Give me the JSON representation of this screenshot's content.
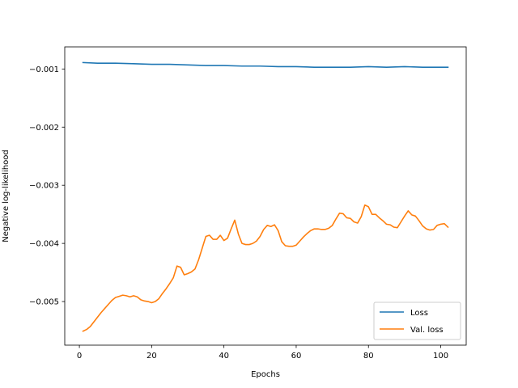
{
  "chart_data": {
    "type": "line",
    "xlabel": "Epochs",
    "ylabel": "Negative log-likelihood",
    "xlim": [
      -4.05,
      107.05
    ],
    "ylim": [
      -0.00575,
      -0.00062
    ],
    "xticks": [
      0,
      20,
      40,
      60,
      80,
      100
    ],
    "xtick_labels": [
      "0",
      "20",
      "40",
      "60",
      "80",
      "100"
    ],
    "yticks": [
      -0.005,
      -0.004,
      -0.003,
      -0.002,
      -0.001
    ],
    "ytick_labels": [
      "−0.005",
      "−0.004",
      "−0.003",
      "−0.002",
      "−0.001"
    ],
    "grid": false,
    "legend_position": "lower right",
    "series": [
      {
        "name": "Loss",
        "color": "#1f77b4",
        "x": [
          1,
          5,
          10,
          15,
          20,
          25,
          30,
          35,
          40,
          45,
          50,
          55,
          60,
          65,
          70,
          75,
          80,
          85,
          90,
          95,
          102
        ],
        "y": [
          -0.00089,
          -0.0009,
          -0.0009,
          -0.00091,
          -0.00092,
          -0.00092,
          -0.00093,
          -0.00094,
          -0.00094,
          -0.00095,
          -0.00095,
          -0.00096,
          -0.00096,
          -0.00097,
          -0.00097,
          -0.00097,
          -0.00096,
          -0.00097,
          -0.00096,
          -0.00097,
          -0.00097
        ]
      },
      {
        "name": "Val. loss",
        "color": "#ff7f0e",
        "x": [
          1,
          2,
          3,
          4,
          5,
          6,
          7,
          8,
          9,
          10,
          11,
          12,
          13,
          14,
          15,
          16,
          17,
          18,
          19,
          20,
          21,
          22,
          23,
          24,
          25,
          26,
          27,
          28,
          29,
          30,
          31,
          32,
          33,
          34,
          35,
          36,
          37,
          38,
          39,
          40,
          41,
          42,
          43,
          44,
          45,
          46,
          47,
          48,
          49,
          50,
          51,
          52,
          53,
          54,
          55,
          56,
          57,
          58,
          59,
          60,
          61,
          62,
          63,
          64,
          65,
          66,
          67,
          68,
          69,
          70,
          71,
          72,
          73,
          74,
          75,
          76,
          77,
          78,
          79,
          80,
          81,
          82,
          83,
          84,
          85,
          86,
          87,
          88,
          89,
          90,
          91,
          92,
          93,
          94,
          95,
          96,
          97,
          98,
          99,
          100,
          101,
          102
        ],
        "y": [
          -0.00551,
          -0.00548,
          -0.00543,
          -0.00535,
          -0.00527,
          -0.00519,
          -0.00512,
          -0.00505,
          -0.00498,
          -0.00493,
          -0.00491,
          -0.00489,
          -0.0049,
          -0.00492,
          -0.0049,
          -0.00492,
          -0.00497,
          -0.00499,
          -0.005,
          -0.00502,
          -0.005,
          -0.00495,
          -0.00486,
          -0.00478,
          -0.00469,
          -0.00459,
          -0.00439,
          -0.00441,
          -0.00454,
          -0.00452,
          -0.00449,
          -0.00444,
          -0.00428,
          -0.00408,
          -0.00388,
          -0.00386,
          -0.00393,
          -0.00393,
          -0.00386,
          -0.00395,
          -0.00391,
          -0.00375,
          -0.0036,
          -0.00384,
          -0.004,
          -0.00402,
          -0.00402,
          -0.004,
          -0.00396,
          -0.00388,
          -0.00376,
          -0.00369,
          -0.00371,
          -0.00368,
          -0.00378,
          -0.00397,
          -0.00404,
          -0.00405,
          -0.00405,
          -0.00403,
          -0.00396,
          -0.00389,
          -0.00383,
          -0.00378,
          -0.00375,
          -0.00375,
          -0.00376,
          -0.00376,
          -0.00374,
          -0.00369,
          -0.00358,
          -0.00348,
          -0.00349,
          -0.00356,
          -0.00357,
          -0.00363,
          -0.00365,
          -0.00354,
          -0.00334,
          -0.00337,
          -0.0035,
          -0.0035,
          -0.00356,
          -0.00361,
          -0.00367,
          -0.00368,
          -0.00372,
          -0.00373,
          -0.00363,
          -0.00353,
          -0.00344,
          -0.00351,
          -0.00353,
          -0.00361,
          -0.0037,
          -0.00375,
          -0.00377,
          -0.00376,
          -0.00369,
          -0.00367,
          -0.00366,
          -0.00372
        ]
      }
    ]
  }
}
